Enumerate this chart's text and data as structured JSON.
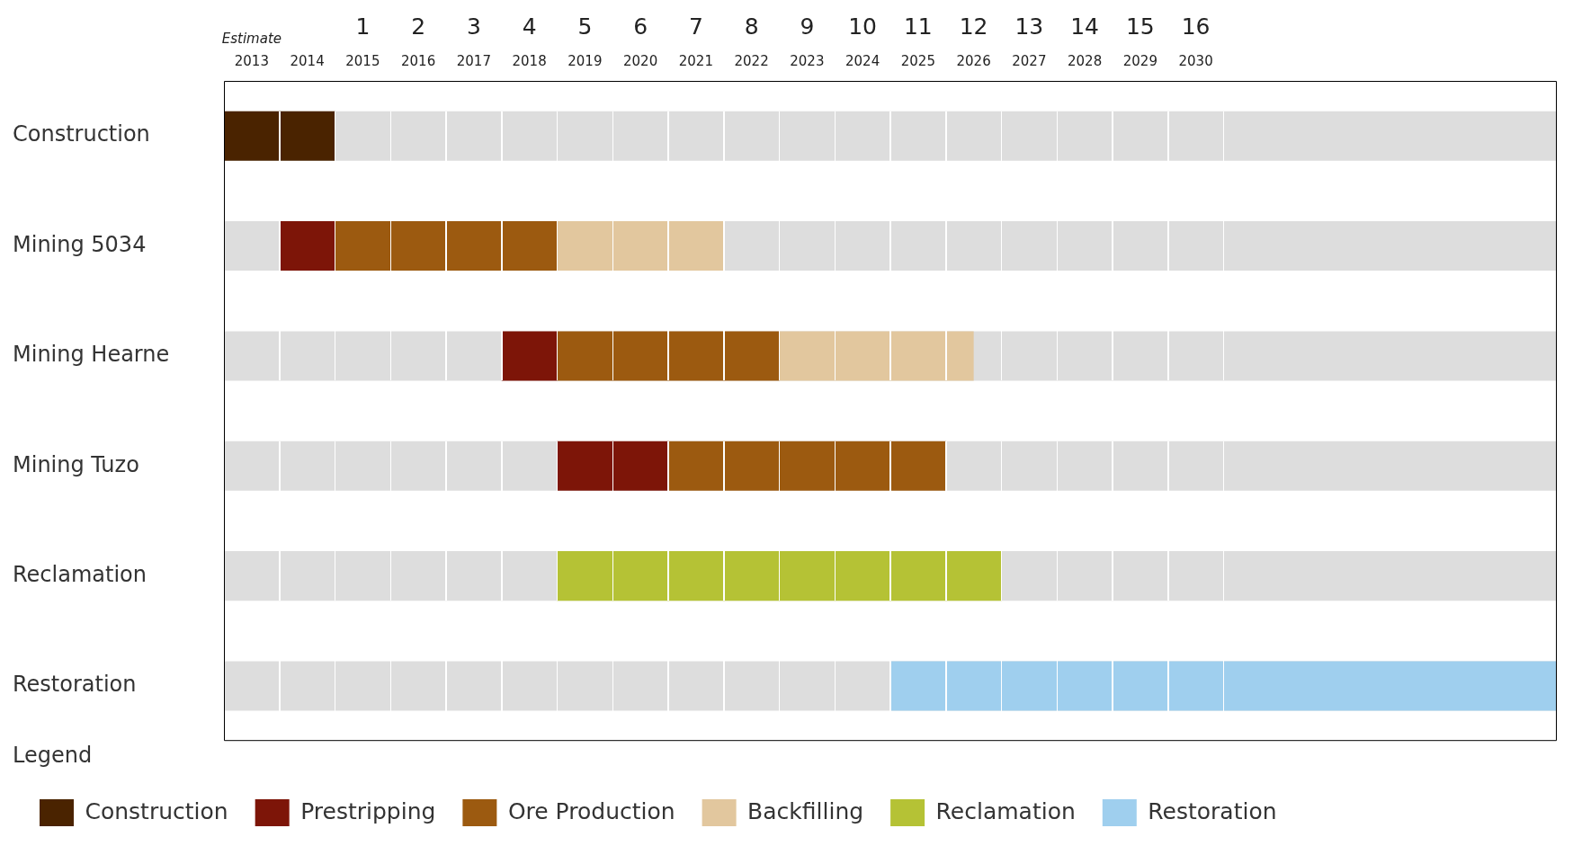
{
  "chart_data": {
    "type": "bar",
    "orientation": "horizontal",
    "categories": [
      "Construction",
      "Mining 5034",
      "Mining Hearne",
      "Mining Tuzo",
      "Reclamation",
      "Restoration"
    ],
    "series": [
      {
        "name": "Construction",
        "color": "#4a2300",
        "base": [
          2013,
          null,
          null,
          null,
          null,
          null
        ],
        "values": [
          2,
          null,
          null,
          null,
          null,
          null
        ]
      },
      {
        "name": "Prestripping",
        "color": "#7d1508",
        "base": [
          null,
          2014,
          2018,
          2019,
          null,
          null
        ],
        "values": [
          null,
          1,
          1,
          2,
          null,
          null
        ]
      },
      {
        "name": "Ore Production",
        "color": "#9c5a10",
        "base": [
          null,
          2015,
          2019,
          2021,
          null,
          null
        ],
        "values": [
          null,
          4,
          4,
          5,
          null,
          null
        ]
      },
      {
        "name": "Backfilling",
        "color": "#e2c79e",
        "base": [
          null,
          2019,
          2023,
          null,
          null,
          null
        ],
        "values": [
          null,
          3,
          3.5,
          null,
          null,
          null
        ]
      },
      {
        "name": "Reclamation",
        "color": "#b5c235",
        "base": [
          null,
          null,
          null,
          null,
          2019,
          null
        ],
        "values": [
          null,
          null,
          null,
          null,
          8,
          null
        ]
      },
      {
        "name": "Restoration",
        "color": "#9fcfee",
        "base": [
          null,
          null,
          null,
          null,
          null,
          2025
        ],
        "values": [
          null,
          null,
          null,
          null,
          null,
          12
        ]
      }
    ],
    "xlim": [
      2013,
      2037
    ],
    "xticks": [
      {
        "value": 2013.5,
        "label": "2013"
      },
      {
        "value": 2014.5,
        "label": "2014"
      },
      {
        "value": 2015.5,
        "label": "2015"
      },
      {
        "value": 2016.5,
        "label": "2016"
      },
      {
        "value": 2017.5,
        "label": "2017"
      },
      {
        "value": 2018.5,
        "label": "2018"
      },
      {
        "value": 2019.5,
        "label": "2019"
      },
      {
        "value": 2020.5,
        "label": "2020"
      },
      {
        "value": 2021.5,
        "label": "2021"
      },
      {
        "value": 2022.5,
        "label": "2022"
      },
      {
        "value": 2023.5,
        "label": "2023"
      },
      {
        "value": 2024.5,
        "label": "2024"
      },
      {
        "value": 2025.5,
        "label": "2025"
      },
      {
        "value": 2026.5,
        "label": "2026"
      },
      {
        "value": 2027.5,
        "label": "2027"
      },
      {
        "value": 2028.5,
        "label": "2028"
      },
      {
        "value": 2029.5,
        "label": "2029"
      },
      {
        "value": 2030.5,
        "label": "2030"
      }
    ],
    "x2lim": [
      -1.5,
      22.5
    ],
    "x2ticks": [
      1,
      2,
      3,
      4,
      5,
      6,
      7,
      8,
      9,
      10,
      11,
      12,
      13,
      14,
      15,
      16
    ],
    "annotations": [
      "Estimate"
    ],
    "legend": "bottom left",
    "legend_title": "Legend"
  }
}
